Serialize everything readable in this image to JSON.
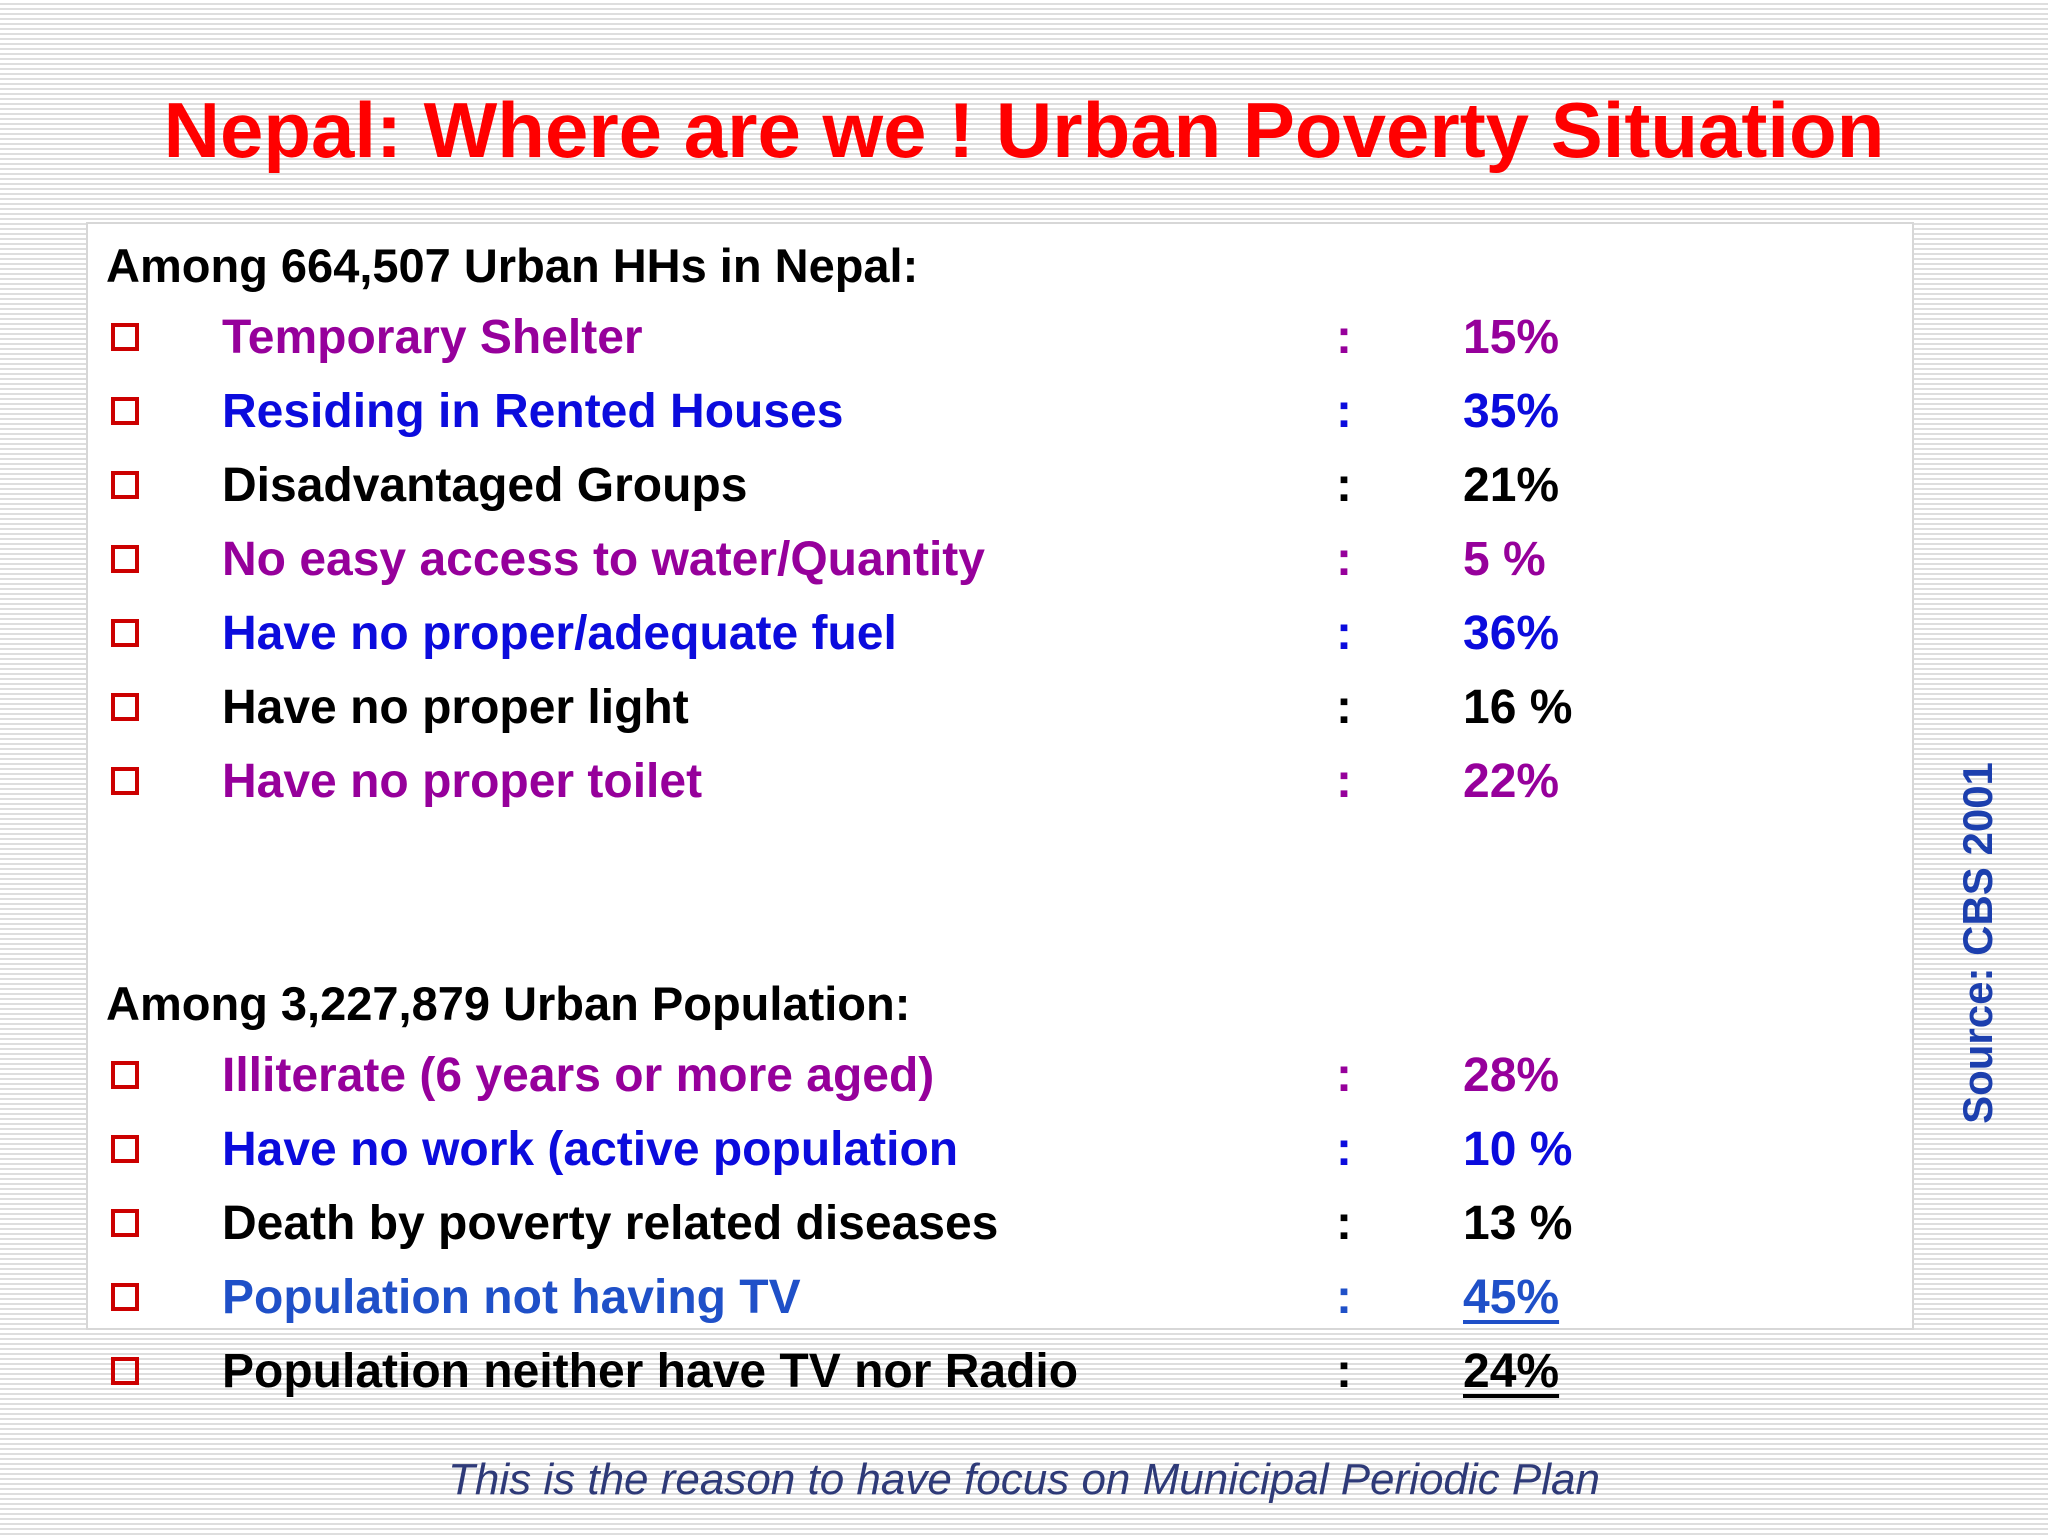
{
  "title": "Nepal: Where are we ! Urban Poverty Situation",
  "colors": {
    "title": "#ff0000",
    "checkbox": "#cc0000",
    "purple": "#96009b",
    "blue": "#0b0bdd",
    "black": "#000000",
    "steel_blue": "#1f50c8",
    "source": "#1c3fae",
    "footer": "#2e3a78"
  },
  "households": {
    "heading": "Among 664,507 Urban HHs in Nepal:",
    "items": [
      {
        "label": "Temporary Shelter",
        "value": "15%",
        "color": "purple"
      },
      {
        "label": "Residing in Rented Houses",
        "value": "35%",
        "color": "blue"
      },
      {
        "label": "Disadvantaged Groups",
        "value": "21%",
        "color": "black"
      },
      {
        "label": "No easy access to water/Quantity",
        "value": "5 %",
        "color": "purple"
      },
      {
        "label": "Have no proper/adequate fuel",
        "value": "36%",
        "color": "blue"
      },
      {
        "label": "Have no proper light",
        "value": "16 %",
        "color": "black"
      },
      {
        "label": "Have no proper toilet",
        "value": "22%",
        "color": "purple"
      }
    ]
  },
  "population": {
    "heading": "Among 3,227,879 Urban Population:",
    "items": [
      {
        "label": "Illiterate (6 years or more aged)",
        "value": "28%",
        "color": "purple"
      },
      {
        "label": "Have no work (active population",
        "value": "10 %",
        "color": "blue"
      },
      {
        "label": "Death by poverty related diseases",
        "value": "13 %",
        "color": "black"
      },
      {
        "label": "Population not having TV",
        "value": "45%",
        "color": "steel_blue",
        "underlined": true
      },
      {
        "label": "Population neither have TV nor Radio",
        "value": "24%",
        "color": "black",
        "underlined": true
      }
    ]
  },
  "separator": ":",
  "source": "Source: CBS 2001",
  "footer": "This is the reason to have focus on Municipal Periodic Plan"
}
